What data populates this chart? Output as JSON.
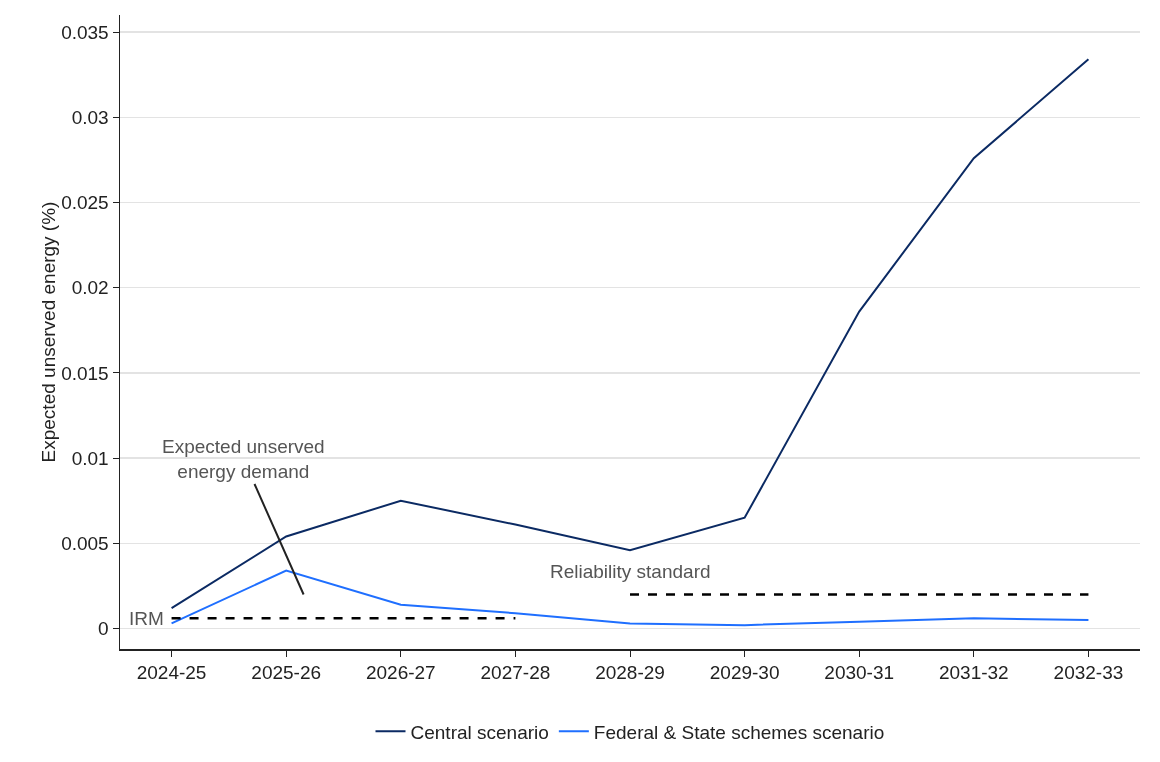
{
  "chart_data": {
    "type": "line",
    "ylabel": "Expected unserved energy (%)",
    "categories": [
      "2024-25",
      "2025-26",
      "2026-27",
      "2027-28",
      "2028-29",
      "2029-30",
      "2030-31",
      "2031-32",
      "2032-33"
    ],
    "series": [
      {
        "name": "Central scenario",
        "color": "#0b2a63",
        "values": [
          0.0012,
          0.0054,
          0.0075,
          0.0061,
          0.0046,
          0.0065,
          0.0186,
          0.0276,
          0.0334
        ]
      },
      {
        "name": "Federal & State schemes scenario",
        "color": "#1f6fff",
        "values": [
          0.0003,
          0.0034,
          0.0014,
          0.0009,
          0.0003,
          0.0002,
          0.0004,
          0.0006,
          0.0005
        ]
      },
      {
        "name": "IRM",
        "color": "#000000",
        "line_style": "dashed",
        "values": [
          0.0006,
          0.0006,
          0.0006,
          0.0006,
          null,
          null,
          null,
          null,
          null
        ]
      },
      {
        "name": "Reliability standard",
        "color": "#000000",
        "line_style": "dashed",
        "values": [
          null,
          null,
          null,
          null,
          0.002,
          0.002,
          0.002,
          0.002,
          0.002
        ]
      }
    ],
    "annotations": [
      "Expected unserved\nenergy demand"
    ],
    "ylim": [
      -0.0012,
      0.036
    ],
    "yticks": [
      0,
      0.005,
      0.01,
      0.015,
      0.02,
      0.025,
      0.03,
      0.035
    ],
    "grid": "y",
    "legend": "bottom",
    "marker": "none"
  }
}
